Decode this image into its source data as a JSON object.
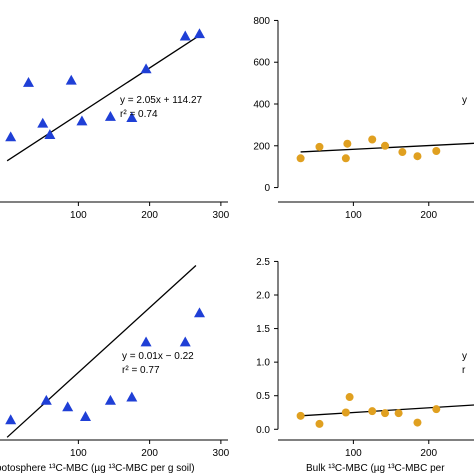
{
  "chart_data": [
    {
      "type": "scatter",
      "panel": "top-left",
      "marker": "triangle",
      "color": "#1f3fd6",
      "x_ticks": [
        "100",
        "200",
        "300"
      ],
      "y_ticks": [],
      "xlim": [
        -10,
        310
      ],
      "ylim": [
        -50,
        780
      ],
      "points": [
        {
          "x": 5,
          "y": 220
        },
        {
          "x": 30,
          "y": 460
        },
        {
          "x": 50,
          "y": 280
        },
        {
          "x": 60,
          "y": 230
        },
        {
          "x": 90,
          "y": 470
        },
        {
          "x": 105,
          "y": 290
        },
        {
          "x": 145,
          "y": 310
        },
        {
          "x": 175,
          "y": 305
        },
        {
          "x": 195,
          "y": 520
        },
        {
          "x": 250,
          "y": 665
        },
        {
          "x": 270,
          "y": 675
        }
      ],
      "fit": {
        "slope": 2.05,
        "intercept": 114.27,
        "x_range": [
          0,
          270
        ]
      },
      "equation": "y = 2.05x + 114.27",
      "r2": "r² = 0.74",
      "xlabel": ""
    },
    {
      "type": "scatter",
      "panel": "top-right",
      "marker": "circle",
      "color": "#e0a020",
      "x_ticks": [
        "100",
        "200"
      ],
      "y_ticks": [
        "0",
        "200",
        "400",
        "600",
        "800"
      ],
      "xlim": [
        0,
        260
      ],
      "ylim": [
        -50,
        850
      ],
      "points": [
        {
          "x": 30,
          "y": 140
        },
        {
          "x": 55,
          "y": 195
        },
        {
          "x": 90,
          "y": 140
        },
        {
          "x": 92,
          "y": 210
        },
        {
          "x": 125,
          "y": 230
        },
        {
          "x": 142,
          "y": 200
        },
        {
          "x": 165,
          "y": 170
        },
        {
          "x": 185,
          "y": 150
        },
        {
          "x": 210,
          "y": 175
        }
      ],
      "fit": {
        "slope": 0.18,
        "intercept": 165,
        "x_range": [
          30,
          260
        ]
      },
      "equation": "y",
      "r2": "",
      "xlabel": ""
    },
    {
      "type": "scatter",
      "panel": "bottom-left",
      "marker": "triangle",
      "color": "#1f3fd6",
      "x_ticks": [
        "100",
        "200",
        "300"
      ],
      "y_ticks": [],
      "xlim": [
        -10,
        310
      ],
      "ylim": [
        -0.2,
        2.7
      ],
      "points": [
        {
          "x": 5,
          "y": 0.05
        },
        {
          "x": 55,
          "y": 0.35
        },
        {
          "x": 85,
          "y": 0.25
        },
        {
          "x": 110,
          "y": 0.1
        },
        {
          "x": 145,
          "y": 0.35
        },
        {
          "x": 175,
          "y": 0.4
        },
        {
          "x": 195,
          "y": 1.25
        },
        {
          "x": 250,
          "y": 1.25
        },
        {
          "x": 270,
          "y": 1.7
        }
      ],
      "fit": {
        "slope": 0.01,
        "intercept": -0.22,
        "x_range": [
          0,
          265
        ]
      },
      "equation": "y = 0.01x − 0.22",
      "r2": "r² = 0.77",
      "xlabel": "ootosphere ¹³C-MBC (µg ¹³C-MBC per g soil)"
    },
    {
      "type": "scatter",
      "panel": "bottom-right",
      "marker": "circle",
      "color": "#e0a020",
      "x_ticks": [
        "100",
        "200"
      ],
      "y_ticks": [
        "0.0",
        "0.5",
        "1.0",
        "1.5",
        "2.0",
        "2.5"
      ],
      "xlim": [
        0,
        260
      ],
      "ylim": [
        -0.1,
        2.7
      ],
      "points": [
        {
          "x": 30,
          "y": 0.2
        },
        {
          "x": 55,
          "y": 0.08
        },
        {
          "x": 90,
          "y": 0.25
        },
        {
          "x": 95,
          "y": 0.48
        },
        {
          "x": 125,
          "y": 0.27
        },
        {
          "x": 142,
          "y": 0.24
        },
        {
          "x": 160,
          "y": 0.24
        },
        {
          "x": 185,
          "y": 0.1
        },
        {
          "x": 210,
          "y": 0.3
        }
      ],
      "fit": {
        "slope": 0.0007,
        "intercept": 0.18,
        "x_range": [
          30,
          260
        ]
      },
      "equation": "y",
      "r2": "r",
      "xlabel": "Bulk ¹³C-MBC (µg ¹³C-MBC per"
    }
  ]
}
